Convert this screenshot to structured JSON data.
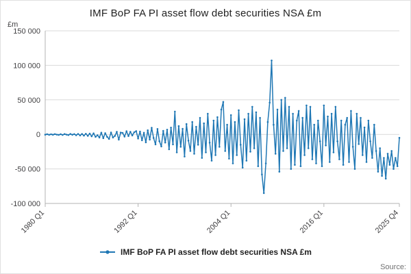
{
  "chart_data": {
    "type": "line",
    "title": "IMF BoP FA PI asset flow debt securities NSA £m",
    "ylabel": "£m",
    "xlabel": "",
    "ylim": [
      -100000,
      150000
    ],
    "grid": "horizontal",
    "legend": "IMF BoP FA PI asset flow debt securities NSA £m",
    "legend_position": "bottom",
    "line_color": "#1f77b4",
    "axis_color": "#b3b3b3",
    "source": "Source:",
    "x_period": {
      "start": "1980 Q1",
      "end": "2025 Q4",
      "frequency": "quarterly",
      "points": 184
    },
    "yticks": [
      {
        "v": 150000,
        "label": "150 000"
      },
      {
        "v": 100000,
        "label": "100 000"
      },
      {
        "v": 50000,
        "label": "50 000"
      },
      {
        "v": 0,
        "label": "0"
      },
      {
        "v": -50000,
        "label": "-50 000"
      },
      {
        "v": -100000,
        "label": "-100 000"
      }
    ],
    "xticks": [
      {
        "i": 0,
        "label": "1980 Q1"
      },
      {
        "i": 48,
        "label": "1992 Q1"
      },
      {
        "i": 96,
        "label": "2004 Q1"
      },
      {
        "i": 144,
        "label": "2016 Q1"
      },
      {
        "i": 183,
        "label": "2025 Q4"
      }
    ],
    "values": [
      -400,
      300,
      -600,
      200,
      -500,
      400,
      -300,
      -700,
      300,
      -800,
      500,
      -300,
      -900,
      600,
      -500,
      400,
      -1200,
      700,
      -1500,
      600,
      -1800,
      900,
      -2200,
      1200,
      -2800,
      1500,
      -3500,
      -1200,
      -4500,
      2500,
      -5500,
      1800,
      -3500,
      -6500,
      2800,
      -4500,
      -2200,
      3800,
      -7500,
      2600,
      2200,
      -3200,
      4600,
      -2400,
      3800,
      -1500,
      3200,
      4800,
      -6000,
      4200,
      -8500,
      2400,
      -11500,
      6000,
      -7500,
      9500,
      -5200,
      -14500,
      7800,
      -9800,
      -17500,
      5200,
      -11800,
      6800,
      -21500,
      9800,
      -14500,
      33000,
      -26000,
      12000,
      -18000,
      8000,
      -32000,
      15000,
      -9000,
      -24000,
      18000,
      -28000,
      11000,
      -15000,
      24000,
      -34000,
      16000,
      -26000,
      30000,
      -12000,
      -38000,
      20000,
      -30000,
      25000,
      -18000,
      36000,
      47000,
      -24000,
      14000,
      -35000,
      28000,
      -42000,
      18000,
      -30000,
      35000,
      -15000,
      -48000,
      22000,
      -38000,
      30000,
      -25000,
      40000,
      -20000,
      32000,
      -46000,
      24000,
      -58000,
      -85000,
      -42000,
      18000,
      46000,
      107000,
      14000,
      -28000,
      36000,
      -54000,
      50000,
      -24000,
      53000,
      -20000,
      40000,
      -50000,
      30000,
      -44000,
      20000,
      34000,
      -46000,
      24000,
      -30000,
      42000,
      -20000,
      40000,
      -36000,
      14000,
      -42000,
      20000,
      -10000,
      -46000,
      42000,
      -16000,
      26000,
      -40000,
      30000,
      -26000,
      40000,
      -10000,
      -36000,
      20000,
      -44000,
      14000,
      24000,
      -40000,
      34000,
      -18000,
      -50000,
      30000,
      -14000,
      24000,
      -30000,
      10000,
      -40000,
      20000,
      -10000,
      -34000,
      14000,
      -24000,
      -54000,
      -20000,
      -60000,
      -34000,
      -64000,
      -28000,
      -44000,
      -24000,
      -50000,
      -34000,
      -46000,
      -5000
    ]
  }
}
